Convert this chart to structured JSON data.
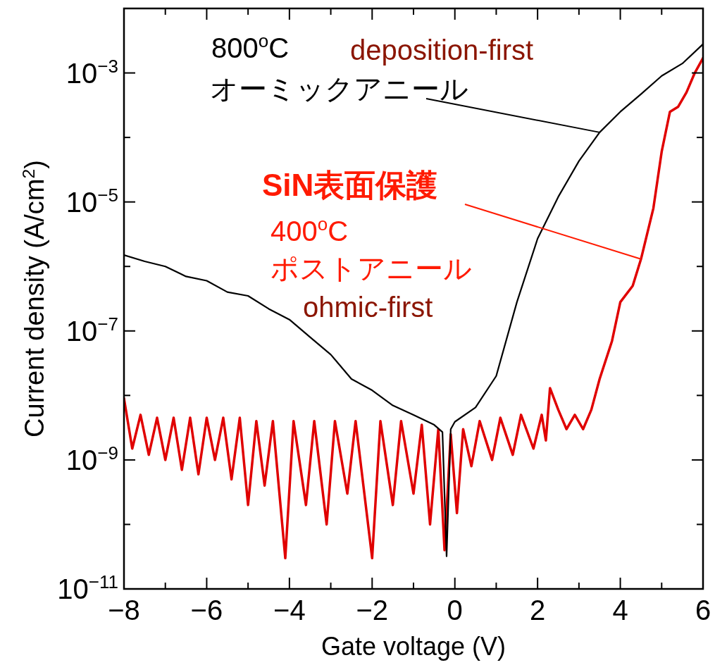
{
  "chart_data": {
    "type": "line",
    "xlabel": "Gate voltage (V)",
    "ylabel": "Current density (A/cm$^{2}$)",
    "log": "y",
    "xlim": [
      -8,
      6
    ],
    "ylim": [
      1e-11,
      0.01
    ],
    "xticks": [
      -8,
      {
        "value": -7,
        "label": null
      },
      -6,
      {
        "value": -5,
        "label": null
      },
      -4,
      {
        "value": -3,
        "label": null
      },
      -2,
      {
        "value": -1,
        "label": null
      },
      0,
      {
        "value": 1,
        "label": null
      },
      2,
      {
        "value": 3,
        "label": null
      },
      4,
      {
        "value": 5,
        "label": null
      },
      6
    ],
    "yticks": [
      {
        "value": 1e-11,
        "label": "10$^{−11}$"
      },
      {
        "value": 1e-10,
        "label": null
      },
      {
        "value": 1e-09,
        "label": "10$^{−9}$"
      },
      {
        "value": 1e-08,
        "label": null
      },
      {
        "value": 1e-07,
        "label": "10$^{−7}$"
      },
      {
        "value": 1e-06,
        "label": null
      },
      {
        "value": 1e-05,
        "label": "10$^{−5}$"
      },
      {
        "value": 0.0001,
        "label": null
      },
      {
        "value": 0.001,
        "label": "10$^{−3}$"
      },
      {
        "value": 0.01,
        "label": null
      }
    ],
    "grid": false,
    "series": [
      {
        "color": "#e00000",
        "x": [
          -8,
          -7.8,
          -7.6,
          -7.4,
          -7.2,
          -7.0,
          -6.8,
          -6.6,
          -6.4,
          -6.2,
          -6.0,
          -5.8,
          -5.6,
          -5.4,
          -5.2,
          -5.0,
          -4.8,
          -4.6,
          -4.4,
          -4.1,
          -3.9,
          -3.6,
          -3.4,
          -3.1,
          -2.9,
          -2.6,
          -2.4,
          -2.0,
          -1.8,
          -1.5,
          -1.3,
          -1.0,
          -0.8,
          -0.6,
          -0.4,
          -0.25,
          -0.1,
          0.05,
          0.2,
          0.4,
          0.6,
          0.9,
          1.1,
          1.4,
          1.6,
          1.9,
          2.1,
          2.2,
          2.3,
          2.5,
          2.7,
          2.9,
          3.1,
          3.3,
          3.5,
          3.8,
          4.0,
          4.3,
          4.5,
          4.8,
          5.0,
          5.2,
          5.4,
          5.6,
          5.8,
          6.0
        ],
        "values": [
          9e-09,
          1.5e-09,
          5e-09,
          1.2e-09,
          4.5e-09,
          1e-09,
          4.5e-09,
          7e-10,
          4.5e-09,
          6e-10,
          4.5e-09,
          1e-09,
          4.5e-09,
          5e-10,
          4.5e-09,
          2e-10,
          4e-09,
          4e-10,
          4e-09,
          3e-11,
          4e-09,
          2e-10,
          4e-09,
          1e-10,
          4e-09,
          3e-10,
          4e-09,
          3e-11,
          4e-09,
          2e-10,
          4e-09,
          3e-10,
          3.5e-09,
          1e-10,
          3e-09,
          4e-11,
          2.5e-09,
          1.5e-10,
          3e-09,
          8e-10,
          4e-09,
          1e-09,
          4.5e-09,
          1.2e-09,
          5e-09,
          1.5e-09,
          5e-09,
          2e-09,
          1.3e-08,
          6e-09,
          3e-09,
          5e-09,
          3e-09,
          6e-09,
          1.8e-08,
          7e-08,
          2.8e-07,
          5e-07,
          1.3e-06,
          8e-06,
          6e-05,
          0.00025,
          0.0003,
          0.0005,
          0.001,
          0.0017
        ]
      },
      {
        "color": "#000000",
        "x": [
          -8,
          -7.5,
          -7,
          -6.5,
          -6,
          -5.5,
          -5,
          -4.5,
          -4,
          -3.5,
          -3,
          -2.5,
          -2,
          -1.5,
          -1,
          -0.5,
          -0.3,
          -0.2,
          -0.1,
          0,
          0.5,
          1,
          1.5,
          2,
          2.5,
          3,
          3.5,
          4,
          4.5,
          5,
          5.5,
          6
        ],
        "values": [
          1.5e-06,
          1.2e-06,
          1e-06,
          7e-07,
          6e-07,
          4e-07,
          3.5e-07,
          2.2e-07,
          1.5e-07,
          8e-08,
          4.3e-08,
          1.8e-08,
          1.2e-08,
          7e-09,
          5e-09,
          3.5e-09,
          2.7e-09,
          3.2e-11,
          3e-09,
          3.9e-09,
          6.5e-09,
          2e-08,
          2.8e-07,
          2.7e-06,
          1.2e-05,
          4.3e-05,
          0.00012,
          0.00025,
          0.00047,
          0.0009,
          0.0014,
          0.0028
        ]
      }
    ],
    "annotations": [
      "800$^{o}$C",
      "deposition-first",
      {
        "text": "オーミックアニール",
        "x": 3.5,
        "y": 0.00012
      },
      {
        "text": "SiN表面保護",
        "x": 4.5,
        "y": 1.3e-06
      },
      "400$^{o}$C",
      "ポストアニール",
      "ohmic-first"
    ]
  }
}
